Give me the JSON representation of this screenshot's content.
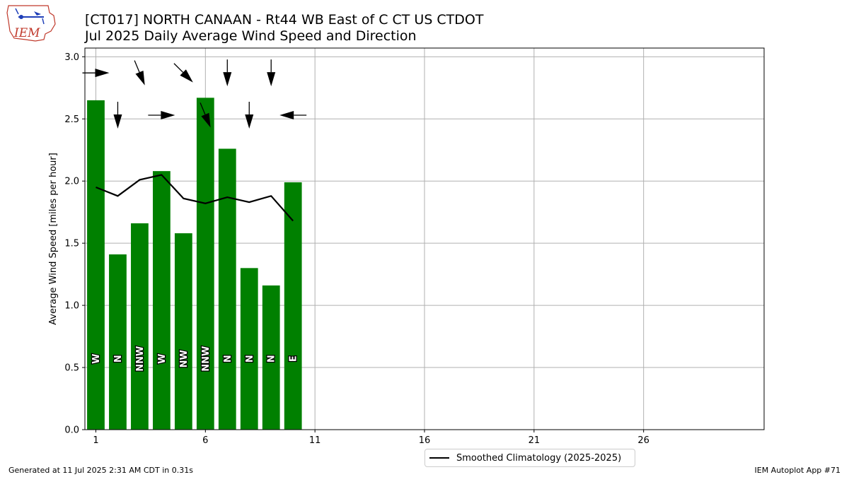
{
  "header": {
    "title": "[CT017] NORTH CANAAN - Rt44 WB East of C CT US  CTDOT",
    "subtitle": "Jul 2025 Daily Average Wind Speed and Direction"
  },
  "logo": {
    "text": "IEM"
  },
  "footer": {
    "left": "Generated at 11 Jul 2025 2:31 AM CDT in 0.31s",
    "right": "IEM Autoplot App #71"
  },
  "chart_data": {
    "type": "bar",
    "ylabel": "Average Wind Speed [miles per hour]",
    "xlabel": "",
    "ylim": [
      0,
      3.07
    ],
    "xlim": [
      0.5,
      31.5
    ],
    "xticks": [
      1,
      6,
      11,
      16,
      21,
      26
    ],
    "yticks": [
      0.0,
      0.5,
      1.0,
      1.5,
      2.0,
      2.5,
      3.0
    ],
    "grid": true,
    "bar_color": "#008000",
    "days": [
      1,
      2,
      3,
      4,
      5,
      6,
      7,
      8,
      9,
      10
    ],
    "values": [
      2.65,
      1.41,
      1.66,
      2.08,
      1.58,
      2.67,
      2.26,
      1.3,
      1.16,
      1.99
    ],
    "directions": [
      "W",
      "N",
      "NNW",
      "W",
      "NW",
      "NNW",
      "N",
      "N",
      "N",
      "E"
    ],
    "direction_degrees": [
      270,
      360,
      337.5,
      270,
      315,
      337.5,
      360,
      360,
      360,
      90
    ],
    "climatology": {
      "name": "Smoothed Climatology (2025-2025)",
      "color": "#000000",
      "days": [
        1,
        2,
        3,
        4,
        5,
        6,
        7,
        8,
        9,
        10
      ],
      "values": [
        1.95,
        1.88,
        2.01,
        2.05,
        1.86,
        1.82,
        1.87,
        1.83,
        1.88,
        1.68
      ]
    },
    "legend": {
      "placement": "bottom-center"
    }
  }
}
